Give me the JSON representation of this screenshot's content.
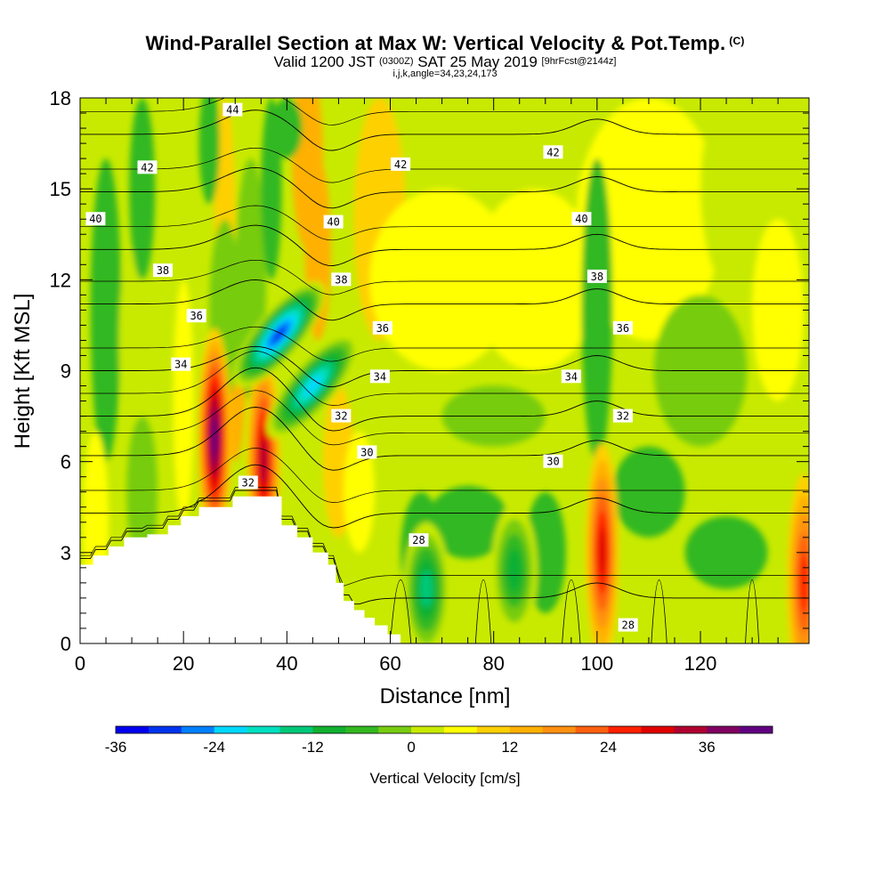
{
  "header": {
    "title": "Wind-Parallel Section at Max W: Vertical Velocity & Pot.Temp.",
    "title_mark": "(C)",
    "valid_prefix": "Valid 1200 JST",
    "valid_utc": "(0300Z)",
    "valid_date": "SAT 25 May 2019",
    "forecast": "[9hrFcst@2144z]",
    "params": "i,j,k,angle=34,23,24,173"
  },
  "chart_data": {
    "type": "heatmap",
    "title": "Wind-Parallel Section at Max W: Vertical Velocity & Pot.Temp.",
    "xlabel": "Distance [nm]",
    "ylabel": "Height [Kft MSL]",
    "xlim": [
      0,
      141
    ],
    "ylim": [
      0,
      18
    ],
    "x_ticks": [
      "0",
      "20",
      "40",
      "60",
      "80",
      "100",
      "120"
    ],
    "y_ticks": [
      "0",
      "3",
      "6",
      "9",
      "12",
      "15",
      "18"
    ],
    "colorbar": {
      "title": "Vertical Velocity [cm/s]",
      "tick_labels": [
        "-36",
        "-24",
        "-12",
        "0",
        "12",
        "24",
        "36"
      ],
      "colors": [
        "#0000ee",
        "#0033ee",
        "#0080ff",
        "#00d8ff",
        "#00e0c0",
        "#00c878",
        "#11b030",
        "#33b820",
        "#77cc11",
        "#c8ea00",
        "#ffff00",
        "#ffd000",
        "#ffb000",
        "#ff9010",
        "#ff6010",
        "#ff2000",
        "#e00000",
        "#b00030",
        "#800060",
        "#600080"
      ]
    },
    "terrain_profile": [
      [
        0,
        2.6
      ],
      [
        2.5,
        2.6
      ],
      [
        2.5,
        2.9
      ],
      [
        5.5,
        2.9
      ],
      [
        5.5,
        3.2
      ],
      [
        8.5,
        3.2
      ],
      [
        8.5,
        3.5
      ],
      [
        13,
        3.5
      ],
      [
        13,
        3.6
      ],
      [
        17,
        3.6
      ],
      [
        17,
        3.9
      ],
      [
        19.5,
        3.9
      ],
      [
        19.5,
        4.2
      ],
      [
        23,
        4.2
      ],
      [
        23,
        4.5
      ],
      [
        29.5,
        4.5
      ],
      [
        29.5,
        4.85
      ],
      [
        39,
        4.85
      ],
      [
        39,
        3.9
      ],
      [
        42,
        3.9
      ],
      [
        42,
        3.5
      ],
      [
        45,
        3.5
      ],
      [
        45,
        3.0
      ],
      [
        48,
        3.0
      ],
      [
        48,
        2.6
      ],
      [
        49.5,
        2.6
      ],
      [
        49.5,
        2.0
      ],
      [
        51,
        2.0
      ],
      [
        51,
        1.4
      ],
      [
        53,
        1.4
      ],
      [
        53,
        1.1
      ],
      [
        55,
        1.1
      ],
      [
        55,
        0.85
      ],
      [
        57,
        0.85
      ],
      [
        57,
        0.6
      ],
      [
        59.5,
        0.6
      ],
      [
        59.5,
        0.3
      ],
      [
        62,
        0.3
      ],
      [
        62,
        0
      ]
    ],
    "velocity_features": [
      {
        "x": 26,
        "y": 6.8,
        "value": 38
      },
      {
        "x": 35.5,
        "y": 6.0,
        "value": 30
      },
      {
        "x": 38.5,
        "y": 10.2,
        "value": -36
      },
      {
        "x": 45,
        "y": 8.5,
        "value": -30
      },
      {
        "x": 67,
        "y": 1.8,
        "value": -21
      },
      {
        "x": 84,
        "y": 2.4,
        "value": -18
      },
      {
        "x": 101,
        "y": 3.0,
        "value": 26
      },
      {
        "x": 140,
        "y": 2.0,
        "value": 20
      }
    ],
    "isentropes": [
      {
        "label": "28",
        "label_positions": [
          [
            65.5,
            3.4
          ],
          [
            106,
            0.6
          ]
        ]
      },
      {
        "label": "30",
        "label_positions": [
          [
            55.5,
            6.3
          ],
          [
            91.5,
            6.0
          ]
        ]
      },
      {
        "label": "32",
        "label_positions": [
          [
            32.5,
            5.3
          ],
          [
            50.5,
            7.5
          ],
          [
            105,
            7.5
          ]
        ]
      },
      {
        "label": "34",
        "label_positions": [
          [
            19.5,
            9.2
          ],
          [
            58,
            8.8
          ],
          [
            95,
            8.8
          ]
        ]
      },
      {
        "label": "36",
        "label_positions": [
          [
            22.5,
            10.8
          ],
          [
            58.5,
            10.4
          ],
          [
            105,
            10.4
          ]
        ]
      },
      {
        "label": "38",
        "label_positions": [
          [
            16,
            12.3
          ],
          [
            50.5,
            12.0
          ],
          [
            100,
            12.1
          ]
        ]
      },
      {
        "label": "40",
        "label_positions": [
          [
            3,
            14.0
          ],
          [
            49,
            13.9
          ],
          [
            97,
            14.0
          ]
        ]
      },
      {
        "label": "42",
        "label_positions": [
          [
            13,
            15.7
          ],
          [
            62,
            15.8
          ],
          [
            91.5,
            16.2
          ]
        ]
      },
      {
        "label": "44",
        "label_positions": [
          [
            29.5,
            17.6
          ]
        ]
      }
    ]
  }
}
